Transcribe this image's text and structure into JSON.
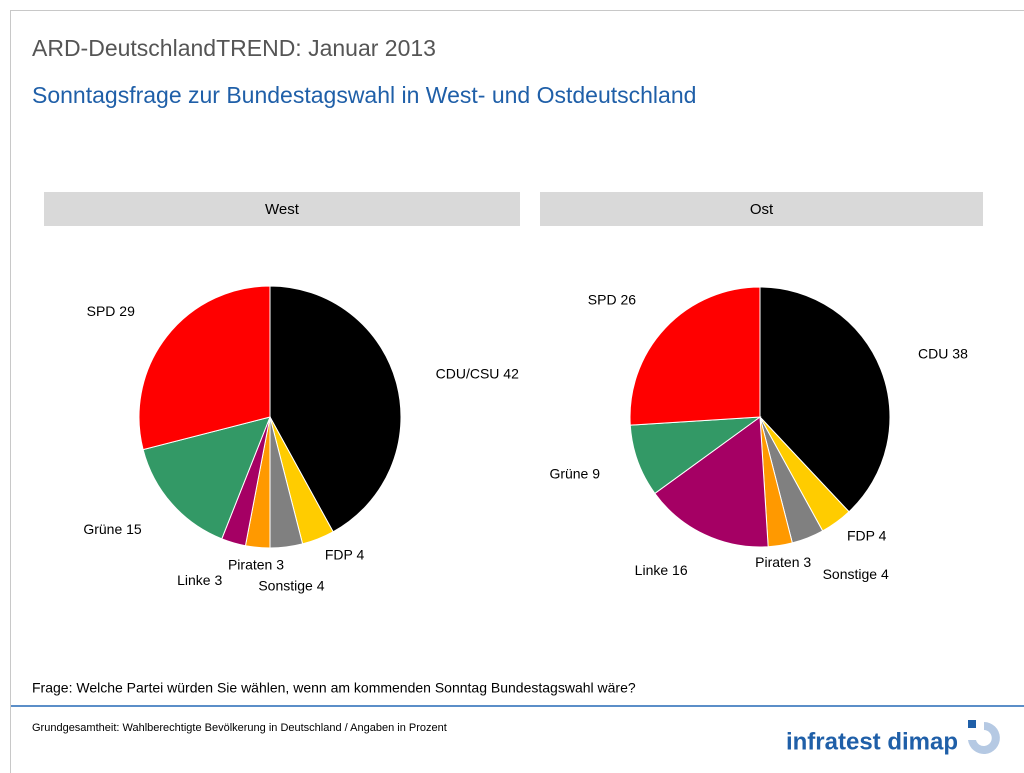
{
  "header": {
    "title": "ARD-DeutschlandTREND: Januar 2013",
    "subtitle": "Sonntagsfrage zur Bundestagswahl in West- und Ostdeutschland"
  },
  "chart_data": [
    {
      "type": "pie",
      "title": "West",
      "categories": [
        "CDU/CSU",
        "FDP",
        "Sonstige",
        "Piraten",
        "Linke",
        "Grüne",
        "SPD"
      ],
      "values": [
        42,
        4,
        4,
        3,
        3,
        15,
        29
      ],
      "colors": [
        "#000000",
        "#ffcc00",
        "#808080",
        "#ff9900",
        "#a50064",
        "#339966",
        "#ff0000"
      ]
    },
    {
      "type": "pie",
      "title": "Ost",
      "categories": [
        "CDU",
        "FDP",
        "Sonstige",
        "Piraten",
        "Linke",
        "Grüne",
        "SPD"
      ],
      "values": [
        38,
        4,
        4,
        3,
        16,
        9,
        26
      ],
      "colors": [
        "#000000",
        "#ffcc00",
        "#808080",
        "#ff9900",
        "#a50064",
        "#339966",
        "#ff0000"
      ]
    }
  ],
  "footer": {
    "question": "Frage: Welche Partei würden Sie wählen, wenn am kommenden Sonntag Bundestagswahl wäre?",
    "note": "Grundgesamtheit: Wahlberechtigte Bevölkerung in Deutschland / Angaben in Prozent",
    "logo": "infratest dimap"
  }
}
